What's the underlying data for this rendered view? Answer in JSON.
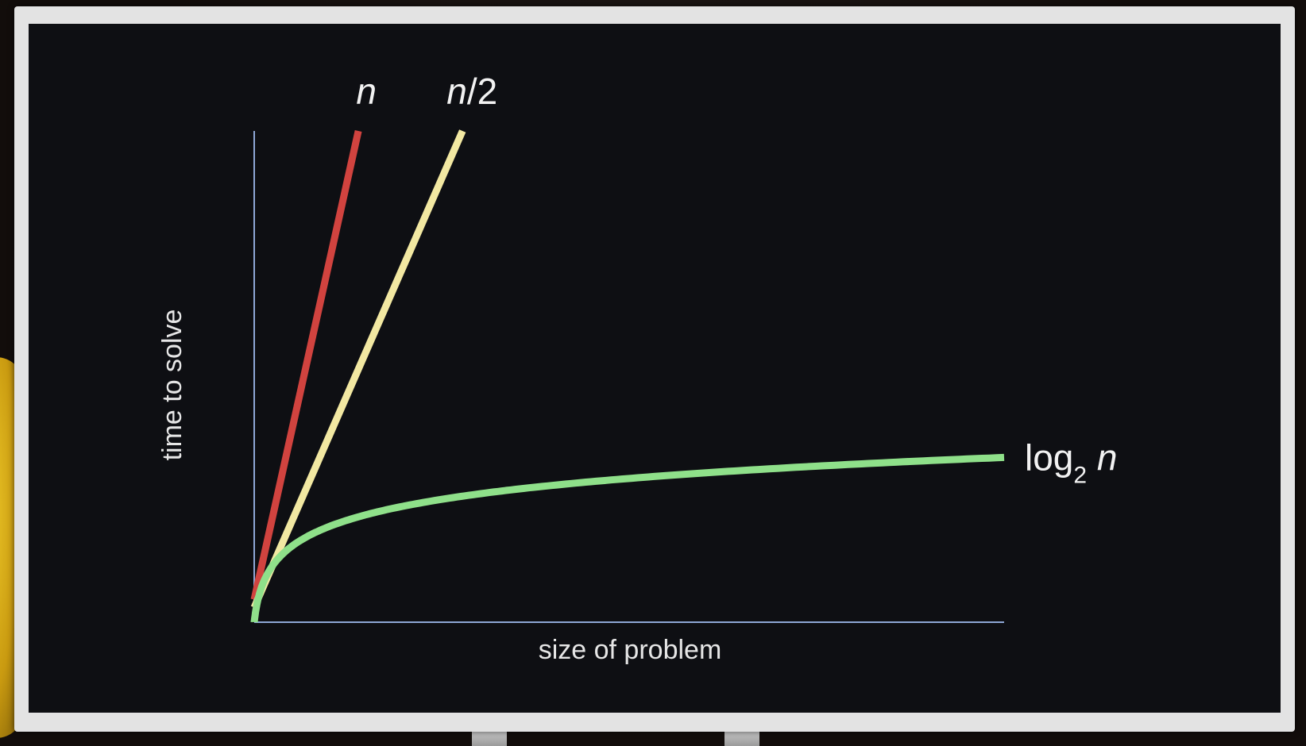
{
  "chart_data": {
    "type": "line",
    "title": "",
    "xlabel": "size of problem",
    "ylabel": "time to solve",
    "xlim": [
      0,
      100
    ],
    "ylim": [
      0,
      100
    ],
    "grid": false,
    "series": [
      {
        "name": "n",
        "name_html": [
          "n"
        ],
        "color": "#d1433f",
        "function": "linear",
        "slope": 7.2
      },
      {
        "name": "n/2",
        "name_html": [
          "n",
          "/2"
        ],
        "color": "#f2e8a2",
        "function": "linear",
        "slope": 3.6
      },
      {
        "name": "log2 n",
        "color": "#8fe08a",
        "function": "log2",
        "scale": 12.9,
        "label_parts": {
          "base": "log",
          "subscript": "2",
          "var": "n"
        }
      }
    ],
    "axis_color": "#8ea7d6"
  }
}
